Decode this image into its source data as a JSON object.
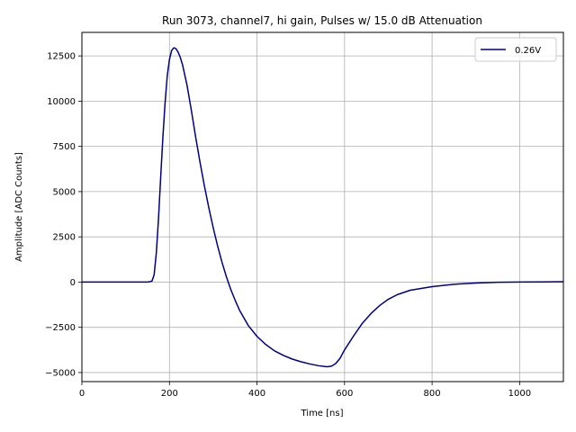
{
  "chart_data": {
    "type": "line",
    "title": "Run 3073, channel7, hi gain, Pulses w/ 15.0 dB Attenuation",
    "xlabel": "Time [ns]",
    "ylabel": "Amplitude [ADC Counts]",
    "xlim": [
      0,
      1100
    ],
    "ylim": [
      -5500,
      13800
    ],
    "xticks": [
      0,
      200,
      400,
      600,
      800,
      1000
    ],
    "yticks": [
      -5000,
      -2500,
      0,
      2500,
      5000,
      7500,
      10000,
      12500
    ],
    "xtick_labels": [
      "0",
      "200",
      "400",
      "600",
      "800",
      "1000"
    ],
    "ytick_labels": [
      "−5000",
      "−2500",
      "0",
      "2500",
      "5000",
      "7500",
      "10000",
      "12500"
    ],
    "grid": true,
    "legend_position": "top-right",
    "series": [
      {
        "name": "0.26V",
        "color": "#000080",
        "x": [
          0,
          100,
          150,
          160,
          165,
          170,
          175,
          180,
          185,
          190,
          195,
          200,
          205,
          210,
          215,
          220,
          225,
          230,
          240,
          250,
          260,
          270,
          280,
          290,
          300,
          310,
          320,
          330,
          340,
          350,
          360,
          380,
          400,
          420,
          440,
          460,
          480,
          500,
          520,
          540,
          560,
          570,
          580,
          590,
          600,
          620,
          640,
          660,
          680,
          700,
          720,
          750,
          800,
          850,
          900,
          950,
          1000,
          1050,
          1100
        ],
        "y": [
          0,
          0,
          0,
          50,
          400,
          1600,
          3500,
          5800,
          8000,
          9900,
          11400,
          12300,
          12800,
          12950,
          12900,
          12700,
          12400,
          12000,
          10900,
          9500,
          8000,
          6600,
          5300,
          4100,
          3000,
          2000,
          1100,
          300,
          -400,
          -1000,
          -1550,
          -2400,
          -3000,
          -3450,
          -3800,
          -4050,
          -4250,
          -4400,
          -4520,
          -4620,
          -4680,
          -4650,
          -4500,
          -4200,
          -3750,
          -3000,
          -2300,
          -1750,
          -1300,
          -950,
          -700,
          -450,
          -250,
          -120,
          -50,
          -10,
          0,
          10,
          20
        ]
      }
    ]
  }
}
